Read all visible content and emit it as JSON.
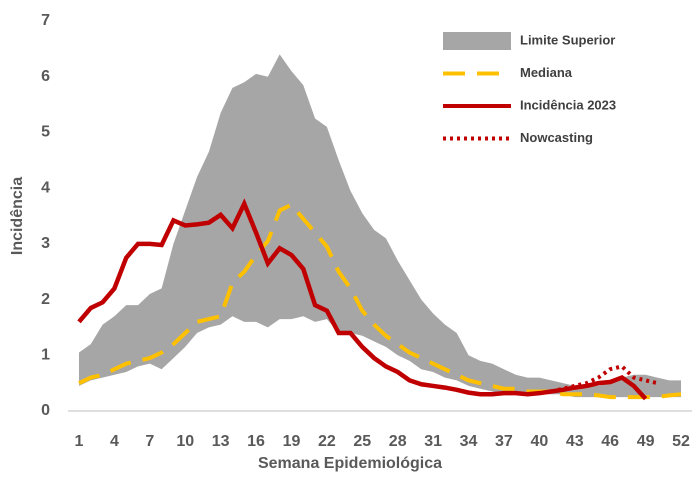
{
  "chart_data": {
    "type": "line",
    "x_label": "Semana Epidemiológica",
    "y_label": "Incidência",
    "x": [
      1,
      2,
      3,
      4,
      5,
      6,
      7,
      8,
      9,
      10,
      11,
      12,
      13,
      14,
      15,
      16,
      17,
      18,
      19,
      20,
      21,
      22,
      23,
      24,
      25,
      26,
      27,
      28,
      29,
      30,
      31,
      32,
      33,
      34,
      35,
      36,
      37,
      38,
      39,
      40,
      41,
      42,
      43,
      44,
      45,
      46,
      47,
      48,
      49,
      50,
      51,
      52
    ],
    "xlim": [
      1,
      52
    ],
    "xticks": [
      1,
      4,
      7,
      10,
      13,
      16,
      19,
      22,
      25,
      28,
      31,
      34,
      37,
      40,
      43,
      46,
      49,
      52
    ],
    "ylim": [
      0,
      7
    ],
    "yticks": [
      0,
      1,
      2,
      3,
      4,
      5,
      6,
      7
    ],
    "grid": false,
    "legend": "top-right",
    "series": [
      {
        "name": "Limite Superior",
        "color": "#a6a6a6",
        "style": "band",
        "values": [
          1.05,
          1.2,
          1.55,
          1.7,
          1.9,
          1.9,
          2.1,
          2.2,
          3.0,
          3.6,
          4.2,
          4.65,
          5.35,
          5.8,
          5.9,
          6.05,
          6.0,
          6.4,
          6.1,
          5.85,
          5.25,
          5.1,
          4.5,
          3.95,
          3.55,
          3.25,
          3.1,
          2.7,
          2.35,
          2.0,
          1.75,
          1.55,
          1.4,
          1.0,
          0.9,
          0.85,
          0.75,
          0.65,
          0.6,
          0.6,
          0.55,
          0.5,
          0.45,
          0.45,
          0.45,
          0.5,
          0.6,
          0.65,
          0.65,
          0.6,
          0.55,
          0.55
        ],
        "lower": [
          0.45,
          0.55,
          0.6,
          0.65,
          0.7,
          0.8,
          0.85,
          0.75,
          0.95,
          1.15,
          1.4,
          1.5,
          1.55,
          1.7,
          1.6,
          1.6,
          1.5,
          1.65,
          1.65,
          1.7,
          1.6,
          1.65,
          1.4,
          1.4,
          1.35,
          1.25,
          1.15,
          1.0,
          0.9,
          0.75,
          0.7,
          0.6,
          0.55,
          0.45,
          0.4,
          0.35,
          0.3,
          0.3,
          0.3,
          0.3,
          0.3,
          0.3,
          0.25,
          0.25,
          0.25,
          0.25,
          0.25,
          0.25,
          0.25,
          0.25,
          0.25,
          0.25
        ]
      },
      {
        "name": "Mediana",
        "color": "#ffc000",
        "style": "dashed",
        "values": [
          0.5,
          0.6,
          0.65,
          0.75,
          0.85,
          0.9,
          0.95,
          1.05,
          1.2,
          1.4,
          1.6,
          1.65,
          1.7,
          2.3,
          2.5,
          2.8,
          3.05,
          3.6,
          3.7,
          3.45,
          3.2,
          2.95,
          2.5,
          2.2,
          1.8,
          1.55,
          1.35,
          1.2,
          1.05,
          0.95,
          0.85,
          0.75,
          0.65,
          0.55,
          0.5,
          0.45,
          0.4,
          0.4,
          0.35,
          0.35,
          0.35,
          0.3,
          0.3,
          0.3,
          0.28,
          0.25,
          0.25,
          0.25,
          0.25,
          0.25,
          0.28,
          0.3
        ]
      },
      {
        "name": "Incidência 2023",
        "color": "#c00000",
        "style": "solid",
        "values": [
          1.6,
          1.85,
          1.95,
          2.2,
          2.75,
          3.0,
          3.0,
          2.98,
          3.42,
          3.33,
          3.35,
          3.38,
          3.52,
          3.28,
          3.72,
          3.2,
          2.65,
          2.92,
          2.8,
          2.55,
          1.9,
          1.8,
          1.4,
          1.4,
          1.15,
          0.95,
          0.8,
          0.7,
          0.55,
          0.48,
          0.45,
          0.42,
          0.38,
          0.33,
          0.3,
          0.3,
          0.32,
          0.32,
          0.3,
          0.32,
          0.35,
          0.38,
          0.42,
          0.45,
          0.5,
          0.52,
          0.6,
          0.45,
          0.22,
          null,
          null,
          null
        ]
      },
      {
        "name": "Nowcasting",
        "color": "#c00000",
        "style": "dotted",
        "values": [
          null,
          null,
          null,
          null,
          null,
          null,
          null,
          null,
          null,
          null,
          null,
          null,
          null,
          null,
          null,
          null,
          null,
          null,
          null,
          null,
          null,
          null,
          null,
          null,
          null,
          null,
          null,
          null,
          null,
          null,
          null,
          null,
          null,
          null,
          null,
          null,
          null,
          null,
          null,
          null,
          0.35,
          0.4,
          0.45,
          0.5,
          0.6,
          0.75,
          0.8,
          0.6,
          0.55,
          0.5,
          null,
          null
        ]
      }
    ]
  }
}
